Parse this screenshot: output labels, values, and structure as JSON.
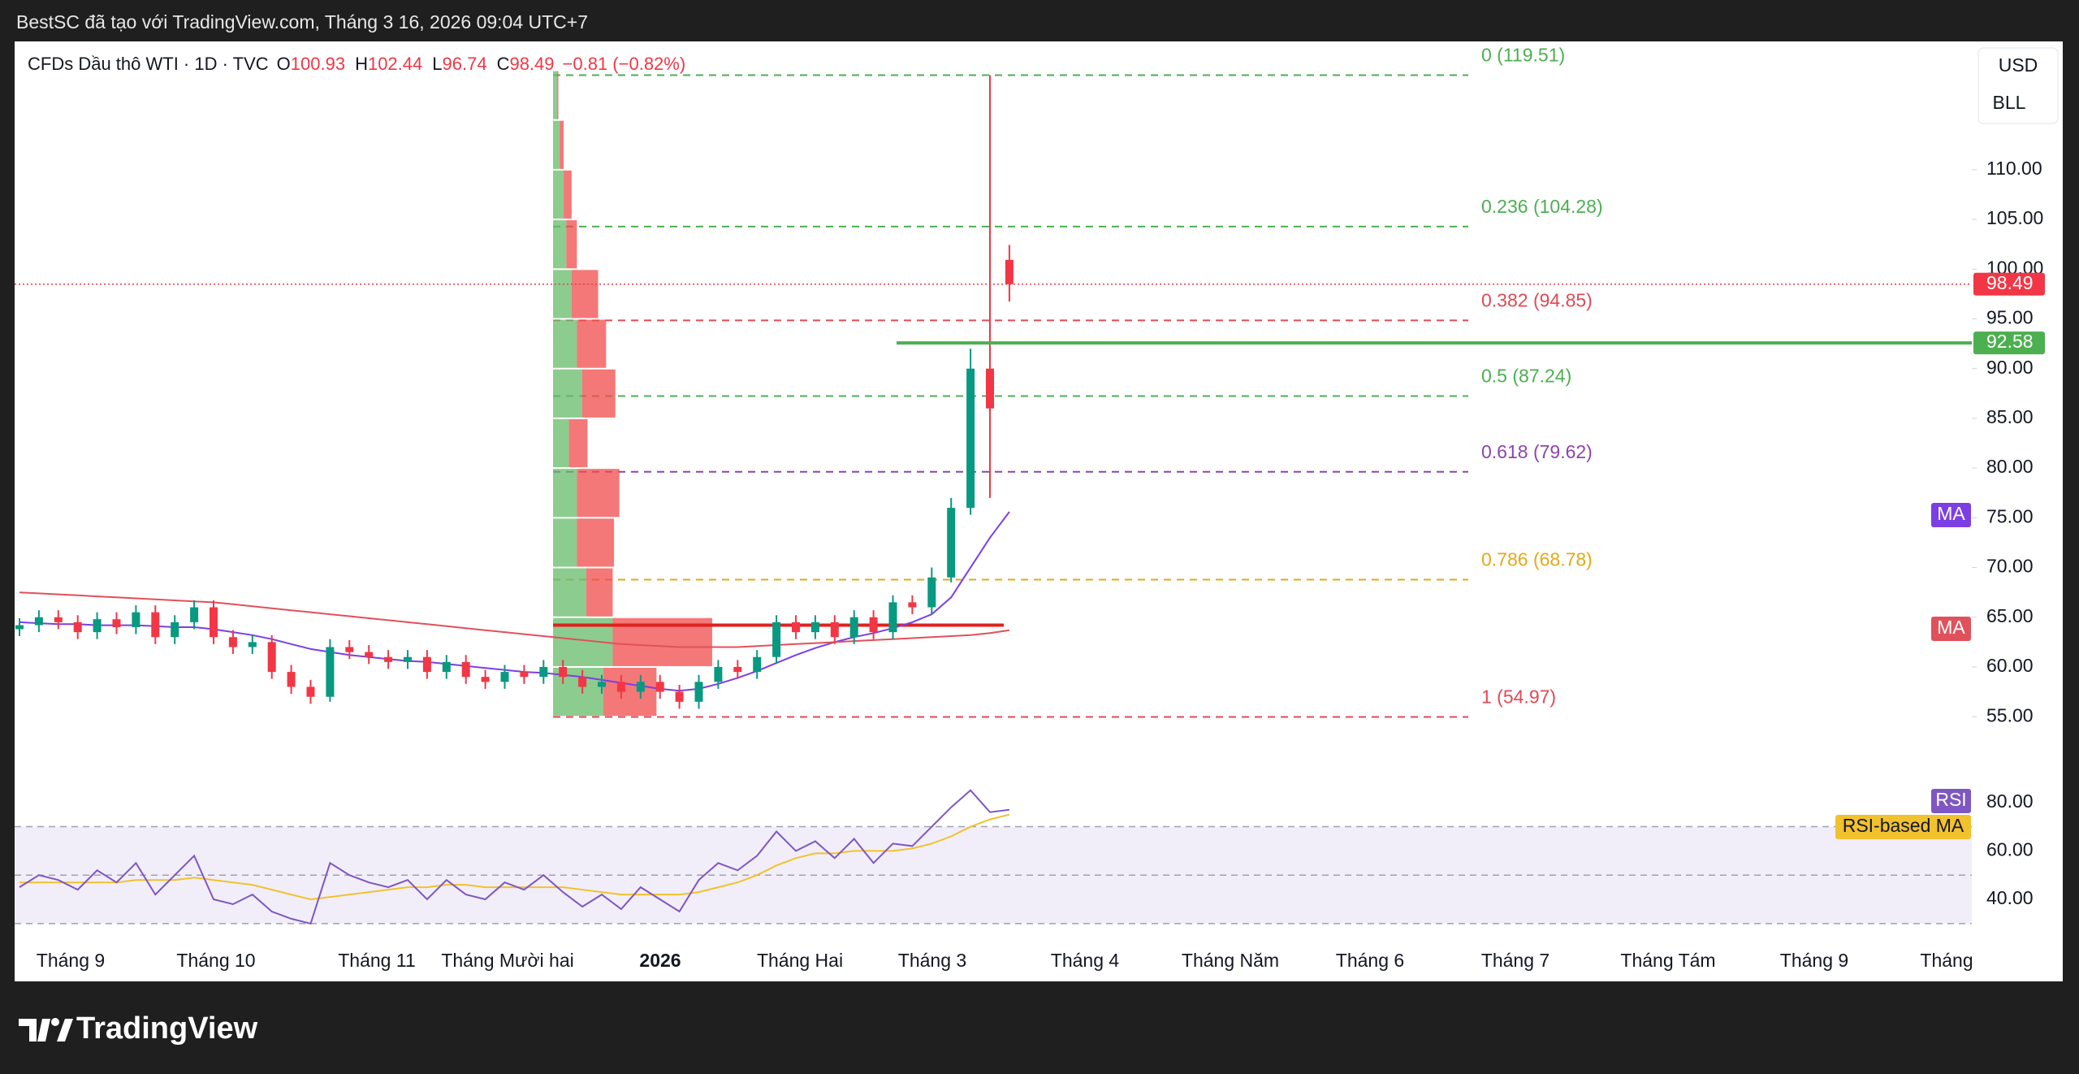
{
  "header": {
    "caption": "BestSC đã tạo với TradingView.com, Tháng 3 16, 2026 09:04 UTC+7",
    "logo": "TradingView"
  },
  "chart_data": {
    "type": "candlestick",
    "symbol": "CFDs Dầu thô WTI · 1D · TVC",
    "legend_labels": [
      "O",
      "H",
      "L",
      "C"
    ],
    "change": "−0.81 (−0.82%)",
    "currency": "USD",
    "unit": "BLL",
    "up_color": "#089981",
    "down_color": "#f23645",
    "open": [
      63.8,
      64.2,
      65,
      64.5,
      63.5,
      64.8,
      64,
      65.5,
      63,
      64.5,
      66,
      63,
      62,
      62.5,
      59.5,
      58,
      57,
      62,
      61.5,
      61,
      60.5,
      61,
      59.5,
      60.5,
      59,
      58.5,
      59.5,
      59,
      60,
      59,
      58,
      58.5,
      57.5,
      58.5,
      57.5,
      56.5,
      58.5,
      60,
      59.5,
      61,
      64.5,
      63.5,
      64.5,
      63,
      65,
      63.5,
      66.5,
      66,
      69,
      76,
      90,
      100.93
    ],
    "high": [
      64.9,
      65.7,
      65.7,
      65.2,
      65.5,
      65.5,
      66.2,
      66.2,
      65.2,
      66.7,
      66.7,
      63.7,
      63.2,
      63.2,
      60.2,
      58.7,
      62.8,
      62.7,
      62.2,
      61.7,
      61.7,
      61.7,
      61.2,
      61.2,
      59.7,
      60.2,
      60.2,
      60.7,
      60.7,
      59.7,
      59.2,
      59.2,
      59.2,
      59.2,
      58.2,
      59.2,
      60.7,
      60.7,
      61.7,
      65.2,
      65.2,
      65.2,
      65.2,
      65.7,
      65.7,
      67.2,
      67.2,
      70,
      77,
      92,
      119.51,
      102.44
    ],
    "low": [
      63.1,
      63.5,
      63.8,
      62.8,
      62.8,
      63.3,
      63.3,
      62.3,
      62.3,
      63.8,
      62.3,
      61.3,
      61.3,
      58.8,
      57.3,
      56.3,
      56.5,
      60.8,
      60.3,
      59.8,
      59.8,
      58.8,
      58.8,
      58.3,
      57.8,
      57.8,
      58.3,
      58.3,
      58.3,
      57.3,
      57.3,
      56.8,
      56.8,
      56.8,
      55.8,
      55.8,
      57.8,
      58.8,
      58.8,
      60.3,
      62.8,
      62.8,
      62.3,
      62.3,
      62.8,
      62.8,
      65.3,
      65.3,
      68.5,
      75.3,
      77,
      96.74
    ],
    "close": [
      64.2,
      65,
      64.5,
      63.5,
      64.8,
      64,
      65.5,
      63,
      64.5,
      66,
      63,
      62,
      62.5,
      59.5,
      58,
      57,
      62,
      61.5,
      61,
      60.5,
      61,
      59.5,
      60.5,
      59,
      58.5,
      59.5,
      59,
      60,
      59,
      58,
      58.5,
      57.5,
      58.5,
      57.5,
      56.5,
      58.5,
      60,
      59.5,
      61,
      64.5,
      63.5,
      64.5,
      63,
      65,
      63.5,
      66.5,
      66,
      69,
      76,
      90,
      86,
      98.49
    ],
    "ylim": [
      52.4,
      122.9
    ],
    "yticks": [
      {
        "value": 55,
        "label": "55.00"
      },
      {
        "value": 60,
        "label": "60.00"
      },
      {
        "value": 65,
        "label": "65.00"
      },
      {
        "value": 70,
        "label": "70.00"
      },
      {
        "value": 75,
        "label": "75.00"
      },
      {
        "value": 80,
        "label": "80.00"
      },
      {
        "value": 85,
        "label": "85.00"
      },
      {
        "value": 90,
        "label": "90.00"
      },
      {
        "value": 95,
        "label": "95.00"
      },
      {
        "value": 100,
        "label": "100.00"
      },
      {
        "value": 105,
        "label": "105.00"
      },
      {
        "value": 110,
        "label": "110.00"
      }
    ],
    "line_level": {
      "value": 92.58,
      "color": "#4caf50"
    },
    "poc_level": {
      "value": 64.2,
      "color": "#e0201f"
    },
    "moving_averages": [
      {
        "name": "MA",
        "color": "#7b3fe4",
        "values": [
          64.5,
          64.4,
          64.3,
          64.3,
          64.2,
          64.2,
          64.2,
          64.1,
          64,
          64,
          63.8,
          63.5,
          63.2,
          62.8,
          62.3,
          61.8,
          61.5,
          61.2,
          61,
          60.8,
          60.6,
          60.5,
          60.3,
          60.1,
          59.9,
          59.7,
          59.5,
          59.4,
          59.2,
          59,
          58.7,
          58.4,
          58.1,
          57.8,
          57.6,
          57.8,
          58.3,
          58.9,
          59.6,
          60.4,
          61.2,
          61.9,
          62.5,
          63,
          63.4,
          63.9,
          64.5,
          65.3,
          67,
          70,
          73,
          75.6
        ]
      },
      {
        "name": "MA",
        "color": "#e0515b",
        "values": [
          67.5,
          67.4,
          67.3,
          67.2,
          67.1,
          67,
          66.9,
          66.8,
          66.7,
          66.6,
          66.5,
          66.3,
          66.1,
          65.9,
          65.7,
          65.5,
          65.3,
          65.1,
          64.9,
          64.7,
          64.5,
          64.3,
          64.1,
          63.9,
          63.7,
          63.5,
          63.3,
          63.1,
          62.9,
          62.7,
          62.5,
          62.3,
          62.2,
          62.1,
          62,
          62,
          62,
          62,
          62.1,
          62.2,
          62.3,
          62.4,
          62.5,
          62.6,
          62.7,
          62.8,
          62.9,
          63,
          63.1,
          63.2,
          63.4,
          63.7
        ]
      }
    ],
    "fib_levels": [
      {
        "label": "0 (119.51)",
        "price": 119.51,
        "color": "#4caf50"
      },
      {
        "label": "0.236 (104.28)",
        "price": 104.28,
        "color": "#4caf50"
      },
      {
        "label": "0.382 (94.85)",
        "price": 94.85,
        "color": "#e04a55"
      },
      {
        "label": "0.5 (87.24)",
        "price": 87.24,
        "color": "#4caf50"
      },
      {
        "label": "0.618 (79.62)",
        "price": 79.62,
        "color": "#8e44ad"
      },
      {
        "label": "0.786 (68.78)",
        "price": 68.78,
        "color": "#e6a817"
      },
      {
        "label": "1 (54.97)",
        "price": 54.97,
        "color": "#e04a55"
      }
    ],
    "volume_profile": {
      "bins": [
        55,
        60,
        65,
        70,
        75,
        80,
        85,
        90,
        95,
        100,
        105,
        110,
        115,
        120
      ],
      "up": [
        38,
        45,
        25,
        18,
        18,
        12,
        22,
        18,
        14,
        10,
        8,
        5,
        3
      ],
      "down": [
        40,
        75,
        20,
        28,
        32,
        14,
        25,
        22,
        20,
        8,
        6,
        3,
        1
      ],
      "up_color": "#66bb6a",
      "down_color": "#f04b4b"
    },
    "x_labels": [
      "Tháng 9",
      "Tháng 10",
      "Tháng 11",
      "Tháng Mười hai",
      "2026",
      "Tháng Hai",
      "Tháng 3",
      "Tháng 4",
      "Tháng Năm",
      "Tháng 6",
      "Tháng 7",
      "Tháng Tám",
      "Tháng 9",
      "Tháng"
    ],
    "rsi": {
      "name": "RSI",
      "color": "#7e57c2",
      "values": [
        45,
        50,
        48,
        44,
        52,
        47,
        55,
        42,
        50,
        58,
        40,
        38,
        42,
        35,
        32,
        30,
        55,
        50,
        47,
        45,
        48,
        40,
        48,
        42,
        40,
        47,
        44,
        50,
        43,
        37,
        42,
        36,
        45,
        40,
        35,
        48,
        55,
        52,
        58,
        68,
        60,
        64,
        57,
        65,
        55,
        63,
        62,
        70,
        78,
        85,
        76,
        77
      ],
      "ma_name": "RSI-based MA",
      "ma_color": "#f2c12e",
      "ma_values": [
        47,
        47,
        47,
        47,
        47,
        47,
        48,
        48,
        48,
        49,
        48,
        47,
        46,
        44,
        42,
        40,
        41,
        42,
        43,
        44,
        45,
        45,
        46,
        46,
        45,
        45,
        45,
        45,
        45,
        44,
        43,
        42,
        42,
        42,
        42,
        43,
        45,
        47,
        50,
        54,
        57,
        59,
        59,
        60,
        60,
        60,
        61,
        63,
        66,
        70,
        73,
        75
      ],
      "ylim": [
        25.6,
        96
      ],
      "yticks": [
        {
          "value": 40,
          "label": "40.00"
        },
        {
          "value": 60,
          "label": "60.00"
        },
        {
          "value": 80,
          "label": "80.00"
        }
      ],
      "bands": [
        30,
        50,
        70
      ]
    }
  }
}
